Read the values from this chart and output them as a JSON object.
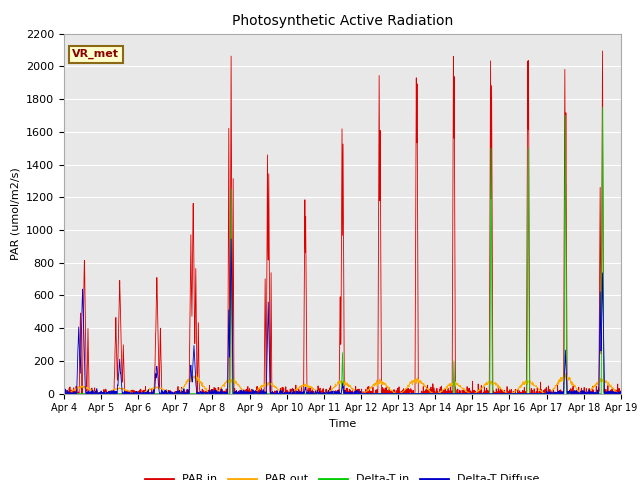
{
  "title": "Photosynthetic Active Radiation",
  "ylabel": "PAR (umol/m2/s)",
  "xlabel": "Time",
  "ylim": [
    0,
    2200
  ],
  "label_box_text": "VR_met",
  "legend_labels": [
    "PAR in",
    "PAR out",
    "Delta-T in",
    "Delta-T Diffuse"
  ],
  "legend_colors": [
    "#dd0000",
    "#ffaa00",
    "#00cc00",
    "#0000cc"
  ],
  "bg_color": "#e8e8e8",
  "xtick_labels": [
    "Apr 4",
    "Apr 5",
    "Apr 6",
    "Apr 7",
    "Apr 8",
    "Apr 9",
    "Apr 10",
    "Apr 11",
    "Apr 12",
    "Apr 13",
    "Apr 14",
    "Apr 15",
    "Apr 16",
    "Apr 17",
    "Apr 18",
    "Apr 19"
  ],
  "ytick_values": [
    0,
    200,
    400,
    600,
    800,
    1000,
    1200,
    1400,
    1600,
    1800,
    2000,
    2200
  ],
  "num_days": 15,
  "points_per_day": 144
}
